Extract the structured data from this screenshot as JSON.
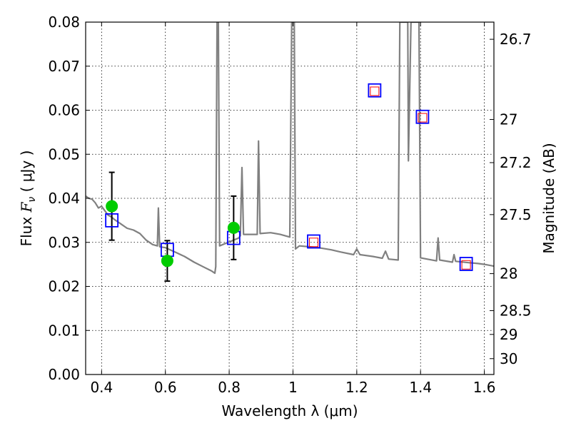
{
  "chart_data": {
    "type": "scatter",
    "xlabel": "Wavelength  λ (μm)",
    "ylabel_prefix": "Flux  ",
    "ylabel_symbol": "F",
    "ylabel_subscript": "ν",
    "ylabel_suffix": "  ( μJy )",
    "y2label": "Magnitude (AB)",
    "xlim": [
      0.35,
      1.63
    ],
    "ylim": [
      0.0,
      0.08
    ],
    "xticks": [
      {
        "value": 0.4,
        "label": "0.4"
      },
      {
        "value": 0.6,
        "label": "0.6"
      },
      {
        "value": 0.8,
        "label": "0.8"
      },
      {
        "value": 1.0,
        "label": "1"
      },
      {
        "value": 1.2,
        "label": "1.2"
      },
      {
        "value": 1.4,
        "label": "1.4"
      },
      {
        "value": 1.6,
        "label": "1.6"
      }
    ],
    "yticks": [
      {
        "value": 0.0,
        "label": "0.00"
      },
      {
        "value": 0.01,
        "label": "0.01"
      },
      {
        "value": 0.02,
        "label": "0.02"
      },
      {
        "value": 0.03,
        "label": "0.03"
      },
      {
        "value": 0.04,
        "label": "0.04"
      },
      {
        "value": 0.05,
        "label": "0.05"
      },
      {
        "value": 0.06,
        "label": "0.06"
      },
      {
        "value": 0.07,
        "label": "0.07"
      },
      {
        "value": 0.08,
        "label": "0.08"
      }
    ],
    "y2ticks": [
      {
        "flux": 0.0761,
        "label": "26.7"
      },
      {
        "flux": 0.0579,
        "label": "27"
      },
      {
        "flux": 0.0481,
        "label": "27.2"
      },
      {
        "flux": 0.0363,
        "label": "27.5"
      },
      {
        "flux": 0.0229,
        "label": "28"
      },
      {
        "flux": 0.0145,
        "label": "28.5"
      },
      {
        "flux": 0.0091,
        "label": "29"
      },
      {
        "flux": 0.0036,
        "label": "30"
      }
    ],
    "grid": true,
    "colors": {
      "model": "#808080",
      "observed": "#00cc00",
      "model_photometry": "#0000ff",
      "inner_box": "#ff0000",
      "errorbar": "#000000"
    },
    "model_spectrum": [
      [
        0.35,
        0.0405
      ],
      [
        0.36,
        0.04
      ],
      [
        0.37,
        0.0398
      ],
      [
        0.38,
        0.039
      ],
      [
        0.39,
        0.0378
      ],
      [
        0.4,
        0.0382
      ],
      [
        0.41,
        0.0372
      ],
      [
        0.42,
        0.0362
      ],
      [
        0.43,
        0.0358
      ],
      [
        0.44,
        0.0352
      ],
      [
        0.46,
        0.0342
      ],
      [
        0.48,
        0.0332
      ],
      [
        0.5,
        0.0328
      ],
      [
        0.52,
        0.032
      ],
      [
        0.54,
        0.0305
      ],
      [
        0.56,
        0.0295
      ],
      [
        0.575,
        0.0292
      ],
      [
        0.578,
        0.0378
      ],
      [
        0.582,
        0.029
      ],
      [
        0.6,
        0.0288
      ],
      [
        0.63,
        0.0278
      ],
      [
        0.66,
        0.0268
      ],
      [
        0.69,
        0.0255
      ],
      [
        0.72,
        0.0244
      ],
      [
        0.745,
        0.0235
      ],
      [
        0.755,
        0.023
      ],
      [
        0.758,
        0.0245
      ],
      [
        0.762,
        0.08
      ],
      [
        0.766,
        0.08
      ],
      [
        0.77,
        0.0292
      ],
      [
        0.79,
        0.0298
      ],
      [
        0.81,
        0.0304
      ],
      [
        0.83,
        0.031
      ],
      [
        0.835,
        0.0315
      ],
      [
        0.84,
        0.047
      ],
      [
        0.845,
        0.0318
      ],
      [
        0.87,
        0.0318
      ],
      [
        0.888,
        0.0318
      ],
      [
        0.892,
        0.053
      ],
      [
        0.897,
        0.032
      ],
      [
        0.93,
        0.0322
      ],
      [
        0.96,
        0.0318
      ],
      [
        0.99,
        0.0312
      ],
      [
        0.996,
        0.08
      ],
      [
        1.004,
        0.08
      ],
      [
        1.008,
        0.0285
      ],
      [
        1.02,
        0.0292
      ],
      [
        1.05,
        0.029
      ],
      [
        1.08,
        0.0288
      ],
      [
        1.12,
        0.0283
      ],
      [
        1.15,
        0.0278
      ],
      [
        1.19,
        0.0272
      ],
      [
        1.2,
        0.0285
      ],
      [
        1.21,
        0.0272
      ],
      [
        1.25,
        0.0268
      ],
      [
        1.28,
        0.0264
      ],
      [
        1.29,
        0.028
      ],
      [
        1.3,
        0.0262
      ],
      [
        1.33,
        0.026
      ],
      [
        1.335,
        0.08
      ],
      [
        1.345,
        0.08
      ],
      [
        1.35,
        0.08
      ],
      [
        1.36,
        0.08
      ],
      [
        1.362,
        0.0485
      ],
      [
        1.37,
        0.08
      ],
      [
        1.375,
        0.08
      ],
      [
        1.38,
        0.08
      ],
      [
        1.395,
        0.08
      ],
      [
        1.4,
        0.0265
      ],
      [
        1.42,
        0.0262
      ],
      [
        1.45,
        0.0258
      ],
      [
        1.455,
        0.031
      ],
      [
        1.46,
        0.026
      ],
      [
        1.5,
        0.0255
      ],
      [
        1.505,
        0.0272
      ],
      [
        1.51,
        0.0257
      ],
      [
        1.55,
        0.0254
      ],
      [
        1.58,
        0.0252
      ],
      [
        1.6,
        0.025
      ],
      [
        1.63,
        0.0246
      ]
    ],
    "observed_points": [
      {
        "x": 0.432,
        "y": 0.0382,
        "yerr": 0.0077
      },
      {
        "x": 0.606,
        "y": 0.0258,
        "yerr": 0.0046
      },
      {
        "x": 0.814,
        "y": 0.0333,
        "yerr": 0.0072
      }
    ],
    "model_photometry_points": [
      {
        "x": 0.432,
        "y": 0.035
      },
      {
        "x": 0.606,
        "y": 0.0283
      },
      {
        "x": 0.814,
        "y": 0.031
      },
      {
        "x": 1.065,
        "y": 0.0302
      },
      {
        "x": 1.256,
        "y": 0.0645
      },
      {
        "x": 1.406,
        "y": 0.0585
      },
      {
        "x": 1.543,
        "y": 0.0251
      }
    ],
    "inner_box_points": [
      {
        "x": 1.065,
        "y": 0.03
      },
      {
        "x": 1.256,
        "y": 0.0643
      },
      {
        "x": 1.406,
        "y": 0.0583
      },
      {
        "x": 1.543,
        "y": 0.0249
      }
    ]
  }
}
